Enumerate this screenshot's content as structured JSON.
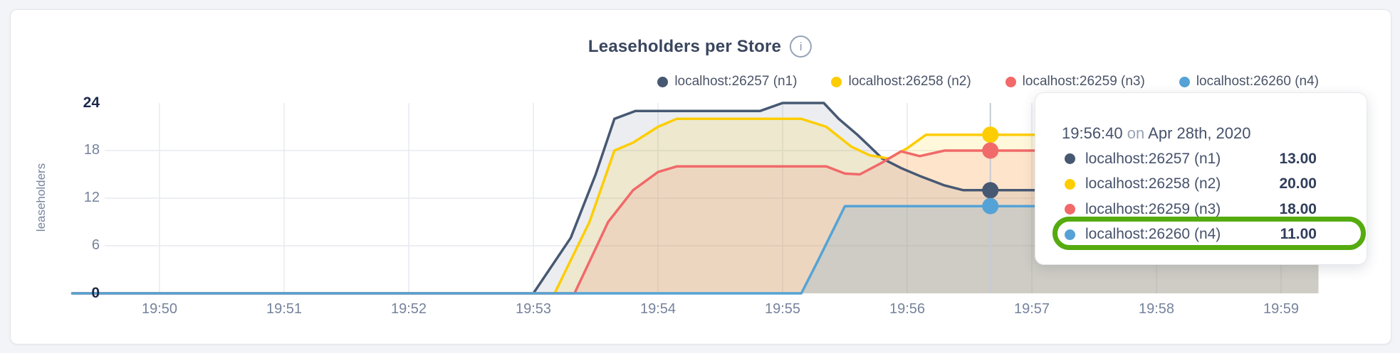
{
  "header": {
    "title": "Leaseholders per Store",
    "info_icon_glyph": "i"
  },
  "axis": {
    "y_label": "leaseholders",
    "y_ticks": [
      {
        "value": 0,
        "bold": true
      },
      {
        "value": 6,
        "bold": false
      },
      {
        "value": 12,
        "bold": false
      },
      {
        "value": 18,
        "bold": false
      },
      {
        "value": 24,
        "bold": true
      }
    ],
    "x_ticks": [
      "19:50",
      "19:51",
      "19:52",
      "19:53",
      "19:54",
      "19:55",
      "19:56",
      "19:57",
      "19:58",
      "19:59"
    ]
  },
  "tooltip": {
    "time": "19:56:40",
    "preposition": "on",
    "date": "Apr 28th, 2020",
    "rows": [
      {
        "label": "localhost:26257 (n1)",
        "value": "13.00",
        "highlighted": false
      },
      {
        "label": "localhost:26258 (n2)",
        "value": "20.00",
        "highlighted": false
      },
      {
        "label": "localhost:26259 (n3)",
        "value": "18.00",
        "highlighted": false
      },
      {
        "label": "localhost:26260 (n4)",
        "value": "11.00",
        "highlighted": true
      }
    ],
    "highlight_color": "#55ab0f"
  },
  "chart_data": {
    "type": "area",
    "title": "Leaseholders per Store",
    "ylabel": "leaseholders",
    "ylim": [
      0,
      24
    ],
    "y_gridlines": [
      6,
      12,
      18
    ],
    "x_tick_labels": [
      "19:50",
      "19:51",
      "19:52",
      "19:53",
      "19:54",
      "19:55",
      "19:56",
      "19:57",
      "19:58",
      "19:59"
    ],
    "x_unit": "minutes after 19:50 on Apr 28th, 2020",
    "x_range": [
      -0.7,
      9.3
    ],
    "grid": true,
    "legend_position": "top-right",
    "hover": {
      "x": 6.667,
      "time": "19:56:40",
      "values": [
        13,
        20,
        18,
        11
      ]
    },
    "series": [
      {
        "id": "n1",
        "name": "localhost:26257 (n1)",
        "color": "#475872",
        "fill_opacity": 0.11,
        "points": [
          [
            -0.7,
            0
          ],
          [
            3.0,
            0
          ],
          [
            3.3,
            7
          ],
          [
            3.5,
            15
          ],
          [
            3.65,
            22
          ],
          [
            3.82,
            23
          ],
          [
            4.82,
            23
          ],
          [
            5.0,
            24
          ],
          [
            5.33,
            24
          ],
          [
            5.45,
            22
          ],
          [
            5.6,
            20
          ],
          [
            5.7,
            18.5
          ],
          [
            5.8,
            17
          ],
          [
            5.95,
            15.8
          ],
          [
            6.1,
            14.8
          ],
          [
            6.3,
            13.6
          ],
          [
            6.45,
            13
          ],
          [
            9.3,
            13
          ]
        ]
      },
      {
        "id": "n2",
        "name": "localhost:26258 (n2)",
        "color": "#fdcd02",
        "fill_opacity": 0.14,
        "points": [
          [
            -0.7,
            0
          ],
          [
            3.17,
            0
          ],
          [
            3.45,
            9
          ],
          [
            3.65,
            18
          ],
          [
            3.8,
            19
          ],
          [
            4.0,
            21
          ],
          [
            4.15,
            22
          ],
          [
            5.15,
            22
          ],
          [
            5.35,
            21
          ],
          [
            5.55,
            18.5
          ],
          [
            5.7,
            17.4
          ],
          [
            5.85,
            17
          ],
          [
            6.0,
            18.3
          ],
          [
            6.15,
            20
          ],
          [
            9.3,
            20
          ]
        ]
      },
      {
        "id": "n3",
        "name": "localhost:26259 (n3)",
        "color": "#f16969",
        "fill_opacity": 0.14,
        "points": [
          [
            -0.7,
            0
          ],
          [
            3.33,
            0
          ],
          [
            3.6,
            9
          ],
          [
            3.8,
            13
          ],
          [
            4.0,
            15.3
          ],
          [
            4.15,
            16
          ],
          [
            5.35,
            16
          ],
          [
            5.5,
            15.1
          ],
          [
            5.62,
            15
          ],
          [
            5.8,
            16.5
          ],
          [
            5.95,
            17.9
          ],
          [
            6.1,
            17.3
          ],
          [
            6.3,
            18
          ],
          [
            9.3,
            18
          ]
        ]
      },
      {
        "id": "n4",
        "name": "localhost:26260 (n4)",
        "color": "#55a3d6",
        "fill_opacity": 0.2,
        "points": [
          [
            -0.7,
            0
          ],
          [
            5.15,
            0
          ],
          [
            5.28,
            4
          ],
          [
            5.5,
            11
          ],
          [
            9.3,
            11
          ]
        ]
      }
    ]
  },
  "colors": {
    "page_bg": "#f2f4f8",
    "card_bg": "#ffffff",
    "card_border": "#e4e5e9",
    "grid": "#e7eaf0",
    "hover_line": "#c6cbd4",
    "title_text": "#3a465e",
    "axis_text": "#76839c",
    "axis_text_bold": "#1b2a4a",
    "legend_text": "#4a5468",
    "tooltip_text": "#46526b",
    "tooltip_value": "#313e5b",
    "tooltip_muted": "#97a3b6",
    "highlight_green": "#55ab0f"
  }
}
